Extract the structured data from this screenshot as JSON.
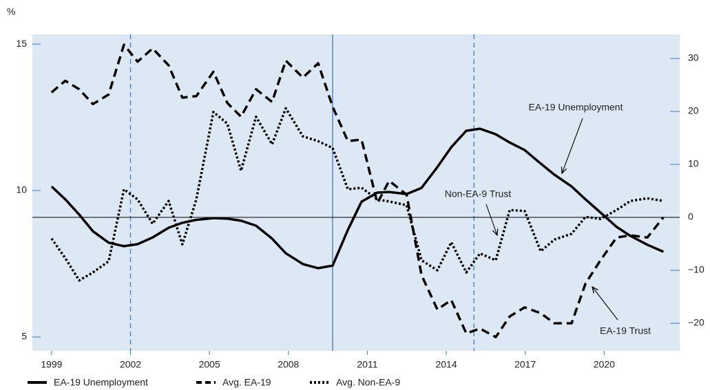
{
  "chart_data": {
    "type": "line",
    "y_unit_label": "%",
    "x": [
      1999.0,
      1999.52,
      2000.05,
      2000.57,
      2001.17,
      2001.75,
      2002.27,
      2002.84,
      2003.45,
      2003.97,
      2004.5,
      2005.15,
      2005.68,
      2006.2,
      2006.77,
      2007.38,
      2007.9,
      2008.55,
      2009.13,
      2009.68,
      2010.26,
      2010.78,
      2011.38,
      2011.83,
      2012.49,
      2013.06,
      2013.66,
      2014.19,
      2014.76,
      2015.28,
      2015.88,
      2016.41,
      2016.98,
      2017.59,
      2018.11,
      2018.76,
      2019.29,
      2019.86,
      2020.47,
      2021.0,
      2021.64,
      2022.25
    ],
    "series": [
      {
        "name": "EA-19 Unemployment",
        "color": "#000000",
        "style": "solid",
        "axis": "y",
        "values": [
          10.14,
          9.7,
          9.18,
          8.61,
          8.22,
          8.1,
          8.17,
          8.4,
          8.73,
          8.9,
          9.0,
          9.06,
          9.04,
          8.97,
          8.8,
          8.36,
          7.86,
          7.49,
          7.35,
          7.44,
          8.66,
          9.62,
          9.93,
          9.95,
          9.88,
          10.09,
          10.8,
          11.48,
          12.04,
          12.11,
          11.92,
          11.64,
          11.38,
          10.92,
          10.54,
          10.14,
          9.7,
          9.25,
          8.76,
          8.45,
          8.15,
          7.91
        ]
      },
      {
        "name": "Avg. EA-19",
        "color": "#000000",
        "style": "dashed",
        "axis": "y2",
        "values": [
          23.6,
          25.8,
          24.2,
          21.4,
          23.2,
          32.6,
          29.4,
          31.9,
          28.7,
          22.6,
          22.9,
          27.5,
          21.6,
          19.0,
          24.2,
          21.8,
          29.6,
          26.4,
          29.1,
          20.9,
          14.4,
          14.7,
          2.7,
          6.9,
          4.3,
          -10.9,
          -17.4,
          -15.6,
          -21.9,
          -21.0,
          -22.6,
          -18.7,
          -17.0,
          -18.1,
          -20.0,
          -20.0,
          -12.5,
          -8.1,
          -3.8,
          -3.4,
          -3.8,
          0
        ]
      },
      {
        "name": "Avg. Non-EA-9",
        "color": "#000000",
        "style": "dotted",
        "axis": "y2",
        "values": [
          -4.0,
          -7.7,
          -11.9,
          -10.4,
          -8.3,
          5.3,
          3.4,
          -1.2,
          3.1,
          -5.1,
          3.4,
          19.9,
          17.7,
          8.8,
          19.0,
          13.8,
          20.6,
          15.3,
          14.4,
          13.1,
          5.3,
          5.6,
          3.4,
          3.0,
          2.3,
          -8.1,
          -10.0,
          -4.7,
          -10.4,
          -6.8,
          -8.1,
          1.4,
          1.2,
          -6.4,
          -4.2,
          -3.1,
          0.1,
          -0.3,
          1.4,
          3.1,
          3.6,
          3.1
        ]
      }
    ],
    "xlim": [
      1998.27,
      2022.87
    ],
    "xticks": [
      1999,
      2002,
      2005,
      2008,
      2011,
      2014,
      2017,
      2020
    ],
    "ylim": [
      4.53,
      15.33
    ],
    "yticks": [
      5,
      10,
      15
    ],
    "y2lim": [
      -25.19,
      34.55
    ],
    "y2ticks": [
      {
        "value": -20,
        "label": "−20"
      },
      {
        "value": -10,
        "label": "−10"
      },
      0,
      10,
      20,
      30
    ],
    "hline_y2": 0,
    "vlines": [
      {
        "x": 2002.0,
        "style": "dashed"
      },
      {
        "x": 2009.68,
        "style": "solid"
      },
      {
        "x": 2015.05,
        "style": "dashed"
      }
    ],
    "annotations": [
      {
        "text": "EA-19 Unemployment"
      },
      {
        "text": "Non-EA-9 Trust"
      },
      {
        "text": "EA-19 Trust"
      }
    ]
  }
}
